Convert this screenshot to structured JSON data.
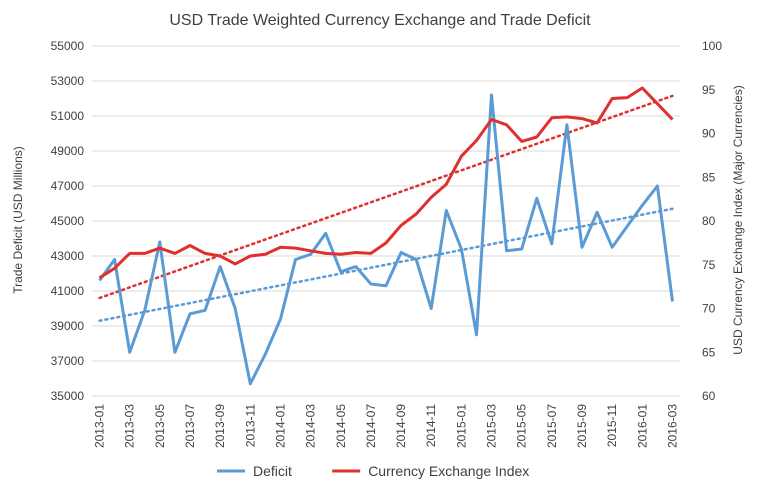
{
  "chart_data": {
    "type": "line",
    "title": "USD Trade Weighted Currency Exchange and Trade Deficit",
    "ylabel_left": "Trade Deficit (USD Millions)",
    "ylabel_right": "USD Currency Exchange Index (Major Currencies)",
    "ylim_left": [
      35000,
      55000
    ],
    "ylim_right": [
      60,
      100
    ],
    "yticks_left": [
      "35000",
      "37000",
      "39000",
      "41000",
      "43000",
      "45000",
      "47000",
      "49000",
      "51000",
      "53000",
      "55000"
    ],
    "yticks_right": [
      "60",
      "65",
      "70",
      "75",
      "80",
      "85",
      "90",
      "95",
      "100"
    ],
    "grid": true,
    "legend_position": "bottom",
    "x": [
      "2013-01",
      "2013-02",
      "2013-03",
      "2013-04",
      "2013-05",
      "2013-06",
      "2013-07",
      "2013-08",
      "2013-09",
      "2013-10",
      "2013-11",
      "2013-12",
      "2014-01",
      "2014-02",
      "2014-03",
      "2014-04",
      "2014-05",
      "2014-06",
      "2014-07",
      "2014-08",
      "2014-09",
      "2014-10",
      "2014-11",
      "2014-12",
      "2015-01",
      "2015-02",
      "2015-03",
      "2015-04",
      "2015-05",
      "2015-06",
      "2015-07",
      "2015-08",
      "2015-09",
      "2015-10",
      "2015-11",
      "2015-12",
      "2016-01",
      "2016-02",
      "2016-03"
    ],
    "x_tick_labels": [
      "2013-01",
      "2013-03",
      "2013-05",
      "2013-07",
      "2013-09",
      "2013-11",
      "2014-01",
      "2014-03",
      "2014-05",
      "2014-07",
      "2014-09",
      "2014-11",
      "2015-01",
      "2015-03",
      "2015-05",
      "2015-07",
      "2015-09",
      "2015-11",
      "2016-01",
      "2016-03"
    ],
    "series": [
      {
        "name": "Deficit",
        "axis": "left",
        "color": "#5b9bd5",
        "values": [
          41600,
          42800,
          37500,
          39900,
          43800,
          37500,
          39700,
          39900,
          42400,
          40000,
          35700,
          37400,
          39400,
          42800,
          43100,
          44300,
          42100,
          42400,
          41400,
          41300,
          43200,
          42800,
          40000,
          45600,
          43400,
          38500,
          52200,
          43300,
          43400,
          46300,
          43700,
          50500,
          43500,
          45500,
          43500,
          44700,
          45900,
          47000,
          40400
        ]
      },
      {
        "name": "Currency Exchange Index",
        "axis": "right",
        "color": "#e0302d",
        "values": [
          73.5,
          74.6,
          76.3,
          76.3,
          76.9,
          76.3,
          77.2,
          76.3,
          76.0,
          75.1,
          76.0,
          76.2,
          77.0,
          76.9,
          76.6,
          76.3,
          76.2,
          76.4,
          76.3,
          77.5,
          79.5,
          80.8,
          82.7,
          84.2,
          87.4,
          89.2,
          91.6,
          91.0,
          89.1,
          89.6,
          91.8,
          91.9,
          91.7,
          91.2,
          94.0,
          94.1,
          95.2,
          93.4,
          91.6
        ]
      }
    ],
    "trendlines": [
      {
        "series": "Deficit",
        "axis": "left",
        "color": "#5b9bd5",
        "start": 39300,
        "end": 45700
      },
      {
        "series": "Currency Exchange Index",
        "axis": "right",
        "color": "#e0302d",
        "start": 71.2,
        "end": 94.3
      }
    ]
  }
}
